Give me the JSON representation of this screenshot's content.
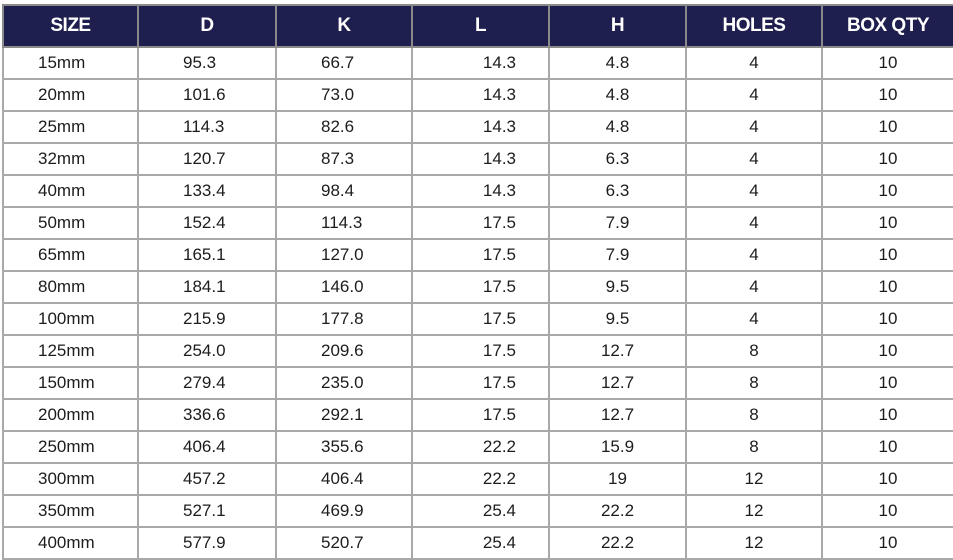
{
  "table": {
    "headers": [
      "SIZE",
      "D",
      "K",
      "L",
      "H",
      "HOLES",
      "BOX QTY"
    ],
    "rows": [
      [
        "15mm",
        "95.3",
        "66.7",
        "14.3",
        "4.8",
        "4",
        "10"
      ],
      [
        "20mm",
        "101.6",
        "73.0",
        "14.3",
        "4.8",
        "4",
        "10"
      ],
      [
        "25mm",
        "114.3",
        "82.6",
        "14.3",
        "4.8",
        "4",
        "10"
      ],
      [
        "32mm",
        "120.7",
        "87.3",
        "14.3",
        "6.3",
        "4",
        "10"
      ],
      [
        "40mm",
        "133.4",
        "98.4",
        "14.3",
        "6.3",
        "4",
        "10"
      ],
      [
        "50mm",
        "152.4",
        "114.3",
        "17.5",
        "7.9",
        "4",
        "10"
      ],
      [
        "65mm",
        "165.1",
        "127.0",
        "17.5",
        "7.9",
        "4",
        "10"
      ],
      [
        "80mm",
        "184.1",
        "146.0",
        "17.5",
        "9.5",
        "4",
        "10"
      ],
      [
        "100mm",
        "215.9",
        "177.8",
        "17.5",
        "9.5",
        "4",
        "10"
      ],
      [
        "125mm",
        "254.0",
        "209.6",
        "17.5",
        "12.7",
        "8",
        "10"
      ],
      [
        "150mm",
        "279.4",
        "235.0",
        "17.5",
        "12.7",
        "8",
        "10"
      ],
      [
        "200mm",
        "336.6",
        "292.1",
        "17.5",
        "12.7",
        "8",
        "10"
      ],
      [
        "250mm",
        "406.4",
        "355.6",
        "22.2",
        "15.9",
        "8",
        "10"
      ],
      [
        "300mm",
        "457.2",
        "406.4",
        "22.2",
        "19",
        "12",
        "10"
      ],
      [
        "350mm",
        "527.1",
        "469.9",
        "25.4",
        "22.2",
        "12",
        "10"
      ],
      [
        "400mm",
        "577.9",
        "520.7",
        "25.4",
        "22.2",
        "12",
        "10"
      ]
    ]
  },
  "colors": {
    "header_background": "#1f1f4f",
    "header_text": "#ffffff",
    "grid_line": "#a9a9a9",
    "cell_text": "#1c1c1c"
  }
}
